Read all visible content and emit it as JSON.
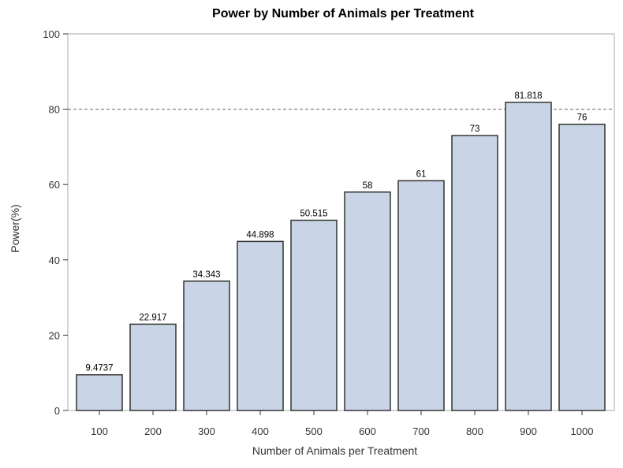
{
  "chart_data": {
    "type": "bar",
    "title": "Power by Number of Animals per Treatment",
    "xlabel": "Number of Animals per Treatment",
    "ylabel": "Power(%)",
    "categories": [
      "100",
      "200",
      "300",
      "400",
      "500",
      "600",
      "700",
      "800",
      "900",
      "1000"
    ],
    "values": [
      9.4737,
      22.917,
      34.343,
      44.898,
      50.515,
      58,
      61,
      73,
      81.818,
      76
    ],
    "data_labels": [
      "9.4737",
      "22.917",
      "34.343",
      "44.898",
      "50.515",
      "58",
      "61",
      "73",
      "81.818",
      "76"
    ],
    "ylim": [
      0,
      100
    ],
    "yticks": [
      "0",
      "20",
      "40",
      "60",
      "80",
      "100"
    ],
    "reference_line": 80,
    "grid": false,
    "colors": {
      "bar_fill": "#c9d5e6",
      "bar_stroke": "#333333",
      "frame": "#a8a8a8",
      "reference_line": "#666666"
    }
  }
}
